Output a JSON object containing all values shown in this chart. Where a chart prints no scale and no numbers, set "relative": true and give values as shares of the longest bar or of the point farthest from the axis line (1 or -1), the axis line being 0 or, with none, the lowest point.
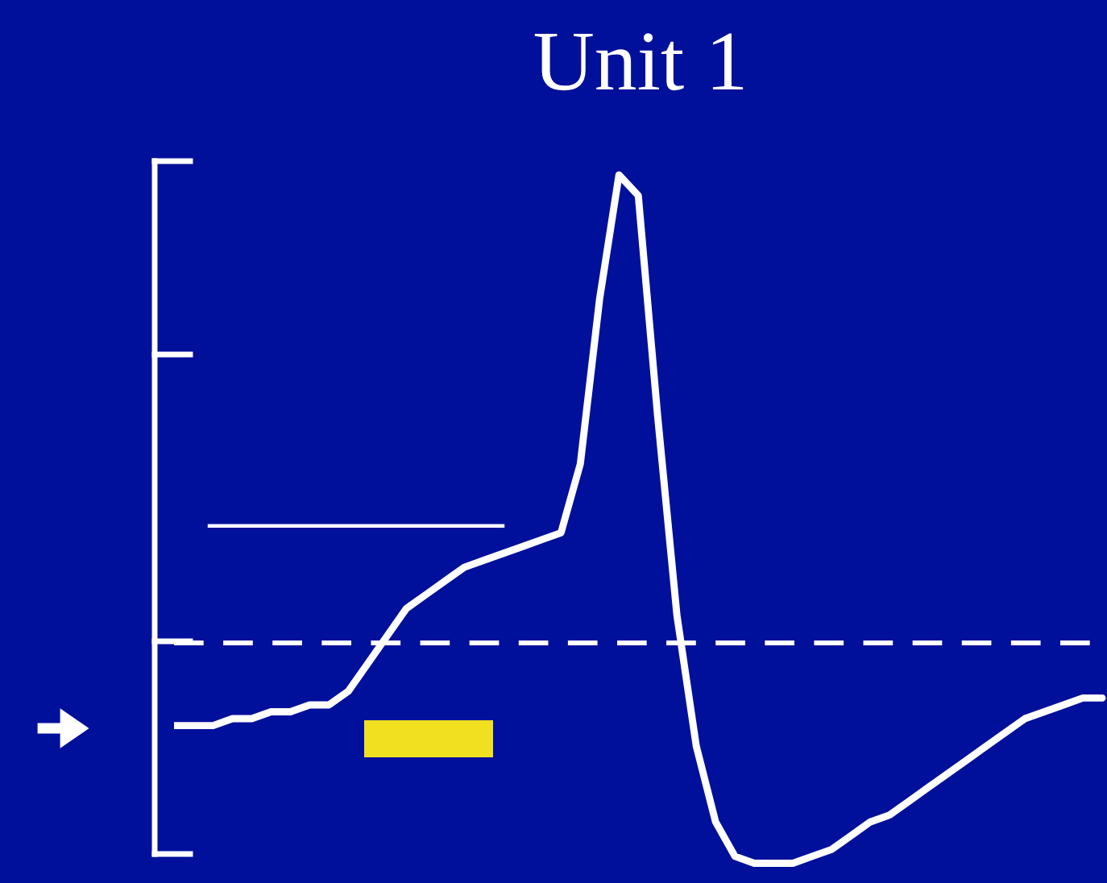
{
  "chart_data": {
    "type": "line",
    "title": "Unit 1",
    "relative": true,
    "categories": [
      null,
      null,
      null,
      null,
      null,
      null,
      null,
      null,
      null,
      null,
      null,
      null,
      null,
      null,
      null,
      null,
      null,
      null,
      null,
      null,
      null,
      null,
      null,
      null,
      null,
      null,
      null,
      null,
      null,
      null,
      null,
      null,
      null,
      null,
      null,
      null,
      null,
      null,
      null,
      null,
      null,
      null,
      null,
      null,
      null,
      null,
      null,
      null,
      null
    ],
    "series": [
      {
        "color": "#ffffff",
        "values": [
          0.2,
          0.2,
          0.2,
          0.21,
          0.21,
          0.22,
          0.22,
          0.23,
          0.23,
          0.25,
          0.29,
          0.33,
          0.37,
          0.39,
          0.41,
          0.43,
          0.44,
          0.45,
          0.46,
          0.47,
          0.48,
          0.58,
          0.82,
          1.0,
          0.97,
          0.65,
          0.36,
          0.17,
          0.06,
          0.01,
          0.0,
          0.0,
          0.0,
          0.01,
          0.02,
          0.04,
          0.06,
          0.07,
          0.09,
          0.11,
          0.13,
          0.15,
          0.17,
          0.19,
          0.21,
          0.22,
          0.23,
          0.24,
          0.24
        ]
      }
    ],
    "ref_lines": [
      {
        "axis": "y",
        "value": 0.32,
        "color": "#ffffff",
        "line_style": "dashed"
      },
      {
        "axis": "y",
        "value": 0.49,
        "color": "#ffffff",
        "line_style": "solid"
      }
    ]
  }
}
